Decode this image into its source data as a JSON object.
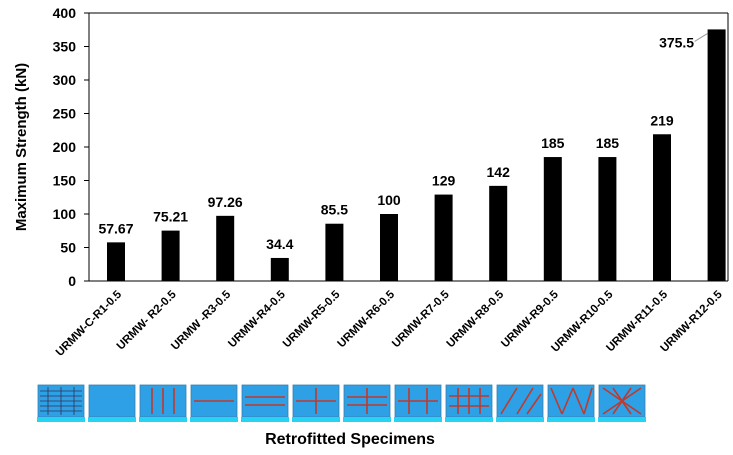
{
  "chart_data": {
    "type": "bar",
    "ylabel": "Maximum Strength (kN)",
    "xlabel": "Retrofitted Specimens",
    "ylim": [
      0,
      400
    ],
    "yticks": [
      0,
      50,
      100,
      150,
      200,
      250,
      300,
      350,
      400
    ],
    "categories": [
      "URMW-C-R1-0.5",
      "URMW- R2-0.5",
      "URMW -R3-0.5",
      "URMW-R4-0.5",
      "URMW-R5-0.5",
      "URMW-R6-0.5",
      "URMW-R7-0.5",
      "URMW-R8-0.5",
      "URMW-R9-0.5",
      "URMW-R10-0.5",
      "URMW-R11-0.5",
      "URMW-R12-0.5"
    ],
    "values": [
      57.67,
      75.21,
      97.26,
      34.4,
      85.5,
      100,
      129,
      142,
      185,
      185,
      219,
      375.5
    ],
    "data_labels": [
      "57.67",
      "75.21",
      "97.26",
      "34.4",
      "85.5",
      "100",
      "129",
      "142",
      "185",
      "185",
      "219",
      "375.5"
    ],
    "bar_color": "#000000",
    "grid": false,
    "legend": "none"
  },
  "thumbnails": {
    "patterns": [
      "grid",
      "plain",
      "vertical",
      "horizontal-single",
      "horizontal-double",
      "cross",
      "cross-double",
      "cross-multi",
      "grid-dense",
      "diagonal",
      "zigzag",
      "x-brace"
    ],
    "panel_color": "#2ea0e6",
    "strip_color": "#27d3f2",
    "strap_color": "#c0392b"
  }
}
